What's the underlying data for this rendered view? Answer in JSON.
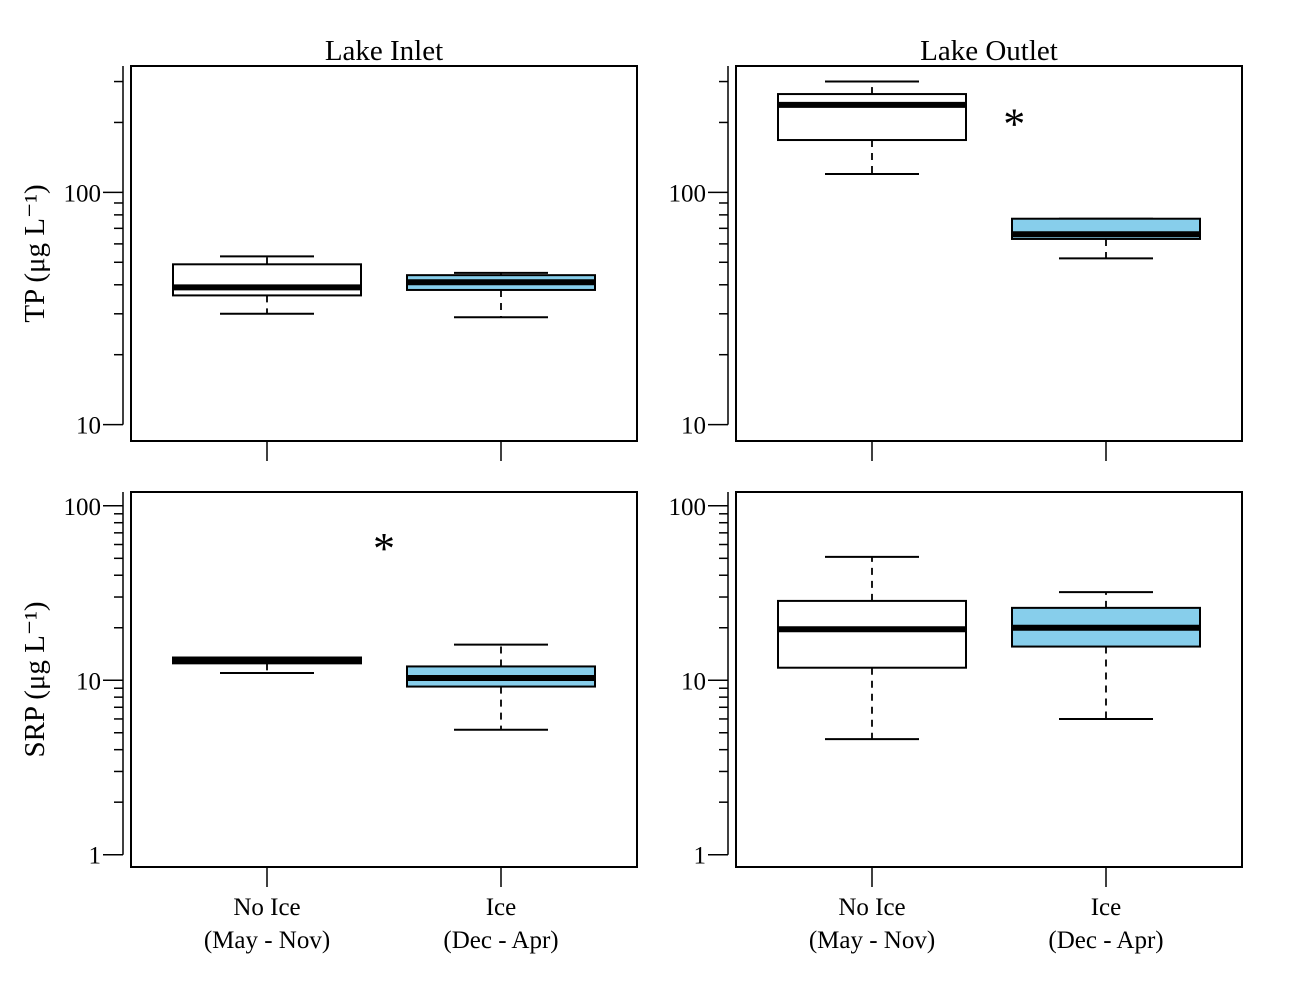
{
  "colors": {
    "no_ice": "#ffffff",
    "ice": "#87ceeb",
    "stroke": "#000000"
  },
  "category_labels": [
    {
      "line1": "No Ice",
      "line2": "(May - Nov)"
    },
    {
      "line1": "Ice",
      "line2": "(Dec - Apr)"
    }
  ],
  "chart_data": [
    {
      "type": "box",
      "title": "Lake Inlet",
      "ylabel": "TP (μg L⁻¹)",
      "yscale": "log",
      "ylim": [
        8.5,
        350
      ],
      "yticks": [
        10,
        100
      ],
      "ytick_labels": [
        "10",
        "100"
      ],
      "categories": [
        "No Ice (May - Nov)",
        "Ice (Dec - Apr)"
      ],
      "boxes": [
        {
          "min": 30,
          "q1": 36,
          "median": 39,
          "q3": 49,
          "max": 53,
          "fill": "#ffffff"
        },
        {
          "min": 29,
          "q1": 38,
          "median": 41,
          "q3": 44,
          "max": 45,
          "fill": "#87ceeb"
        }
      ],
      "annotation": null
    },
    {
      "type": "box",
      "title": "Lake Outlet",
      "ylabel": "",
      "yscale": "log",
      "ylim": [
        8.5,
        350
      ],
      "yticks": [
        10,
        100
      ],
      "ytick_labels": [
        "10",
        "100"
      ],
      "categories": [
        "No Ice (May - Nov)",
        "Ice (Dec - Apr)"
      ],
      "boxes": [
        {
          "min": 120,
          "q1": 168,
          "median": 238,
          "q3": 265,
          "max": 300,
          "fill": "#ffffff"
        },
        {
          "min": 52,
          "q1": 63,
          "median": 66,
          "q3": 77,
          "max": 77,
          "fill": "#87ceeb"
        }
      ],
      "annotation": {
        "text": "*",
        "x": 0.55,
        "y": 230
      }
    },
    {
      "type": "box",
      "title": "",
      "ylabel": "SRP (μg L⁻¹)",
      "yscale": "log",
      "ylim": [
        0.85,
        120
      ],
      "yticks": [
        1,
        10,
        100
      ],
      "ytick_labels": [
        "1",
        "10",
        "100"
      ],
      "categories": [
        "No Ice (May - Nov)",
        "Ice (Dec - Apr)"
      ],
      "boxes": [
        {
          "min": 11,
          "q1": 12.5,
          "median": 12.9,
          "q3": 13.5,
          "max": 13.5,
          "fill": "#ffffff"
        },
        {
          "min": 5.2,
          "q1": 9.2,
          "median": 10.3,
          "q3": 12,
          "max": 16,
          "fill": "#87ceeb"
        }
      ],
      "annotation": {
        "text": "*",
        "x": 0.5,
        "y": 70
      }
    },
    {
      "type": "box",
      "title": "",
      "ylabel": "",
      "yscale": "log",
      "ylim": [
        0.85,
        120
      ],
      "yticks": [
        1,
        10,
        100
      ],
      "ytick_labels": [
        "1",
        "10",
        "100"
      ],
      "categories": [
        "No Ice (May - Nov)",
        "Ice (Dec - Apr)"
      ],
      "boxes": [
        {
          "min": 4.6,
          "q1": 11.8,
          "median": 19.6,
          "q3": 28.5,
          "max": 51,
          "fill": "#ffffff"
        },
        {
          "min": 6,
          "q1": 15.6,
          "median": 20,
          "q3": 26,
          "max": 32,
          "fill": "#87ceeb"
        }
      ],
      "annotation": null
    }
  ]
}
